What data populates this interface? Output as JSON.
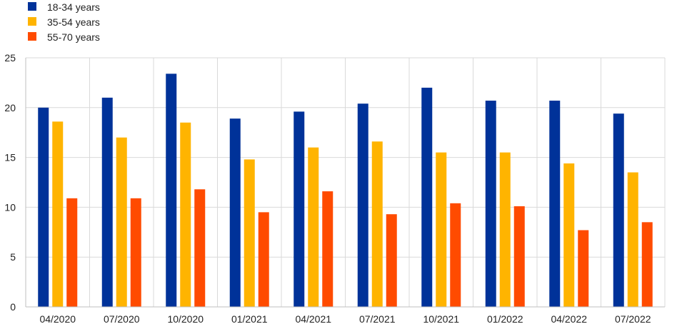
{
  "chart_data": {
    "type": "bar",
    "title": "",
    "xlabel": "",
    "ylabel": "",
    "categories": [
      "04/2020",
      "07/2020",
      "10/2020",
      "01/2021",
      "04/2021",
      "07/2021",
      "10/2021",
      "01/2022",
      "04/2022",
      "07/2022"
    ],
    "series": [
      {
        "name": "18-34 years",
        "color": "#003299",
        "values": [
          20.0,
          21.0,
          23.4,
          18.9,
          19.6,
          20.4,
          22.0,
          20.7,
          20.7,
          19.4
        ]
      },
      {
        "name": "35-54 years",
        "color": "#FFB400",
        "values": [
          18.6,
          17.0,
          18.5,
          14.8,
          16.0,
          16.6,
          15.5,
          15.5,
          14.4,
          13.5
        ]
      },
      {
        "name": "55-70 years",
        "color": "#FF4B00",
        "values": [
          10.9,
          10.9,
          11.8,
          9.5,
          11.6,
          9.3,
          10.4,
          10.1,
          7.7,
          8.5
        ]
      }
    ],
    "ylim": [
      0,
      25
    ],
    "yticks": [
      0,
      5,
      10,
      15,
      20,
      25
    ],
    "grid": true,
    "legend_position": "top-left"
  }
}
